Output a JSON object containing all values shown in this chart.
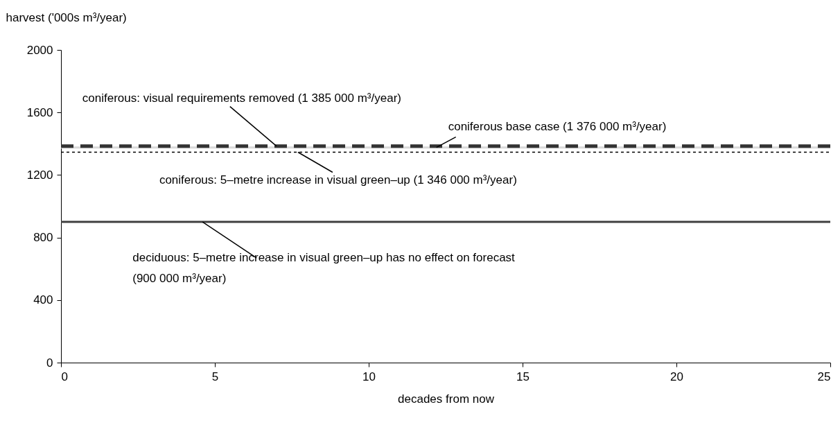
{
  "chart_data": {
    "type": "line",
    "xlabel": "decades from now",
    "ylabel": "harvest ('000s m³/year)",
    "x": [
      0,
      25
    ],
    "xlim": [
      0,
      25
    ],
    "xticks": [
      0,
      5,
      10,
      15,
      20,
      25
    ],
    "ylim": [
      0,
      2000
    ],
    "yticks": [
      0,
      400,
      800,
      1200,
      1600,
      2000
    ],
    "grid": false,
    "marker": "none",
    "series": [
      {
        "color": "#d9d9d9",
        "line_style": "solid",
        "values": [
          1376,
          1376
        ]
      },
      {
        "color": "#333333",
        "line_style": "dashed",
        "values": [
          1385,
          1385
        ]
      },
      {
        "color": "#000000",
        "line_style": "dotted",
        "values": [
          1346,
          1346
        ]
      },
      {
        "color": "#404040",
        "line_style": "solid",
        "values": [
          900,
          900
        ]
      }
    ],
    "annotations": [
      {
        "text": "coniferous: visual requirements removed (1 385 000 m³/year)",
        "x": 7,
        "y": 1385
      },
      {
        "text": "coniferous base case  (1 376 000 m³/year)",
        "x": 12.2,
        "y": 1376
      },
      {
        "text": "coniferous: 5–metre increase in visual green–up (1 346 000 m³/year)",
        "x": 7.7,
        "y": 1346
      },
      {
        "text": "deciduous: 5–metre increase in visual green–up has no effect on forecast\n(900 000 m³/year)",
        "x": 4.6,
        "y": 900
      }
    ]
  }
}
